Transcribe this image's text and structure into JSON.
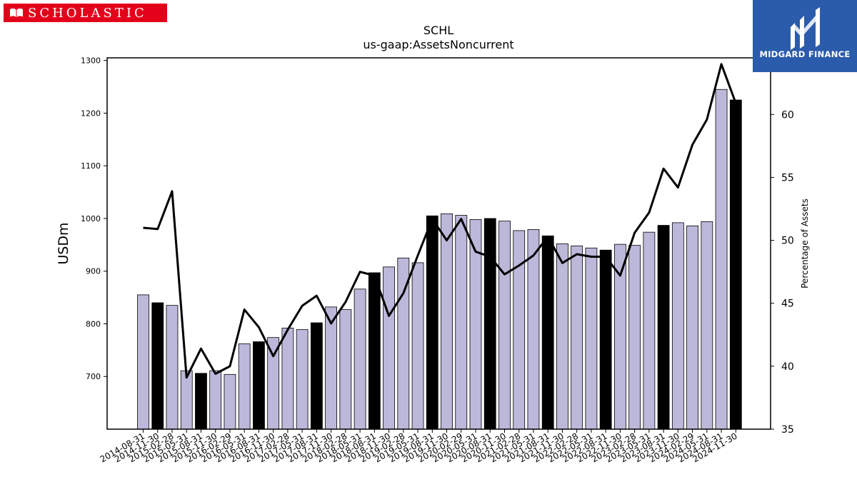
{
  "branding": {
    "left_logo_text": "SCHOLASTIC",
    "right_logo_text": "MIDGARD FINANCE",
    "left_logo_color": "#e3001b",
    "right_logo_color": "#2b5bab"
  },
  "chart_data": {
    "type": "bar",
    "title": "SCHL",
    "subtitle": "us-gaap:AssetsNoncurrent",
    "ylabel": "USDm",
    "y2label": "Percentage of Assets",
    "ylim": [
      600,
      1305
    ],
    "y2lim": [
      35,
      64.5
    ],
    "yticks": [
      700,
      800,
      900,
      1000,
      1100,
      1200,
      1300
    ],
    "y2ticks": [
      35,
      40,
      45,
      50,
      55,
      60
    ],
    "grid": false,
    "colors": {
      "bar_regular": "#bcb8da",
      "bar_fiscal_year_end": "#000000",
      "line": "#000000"
    },
    "categories": [
      "2014-08-31",
      "2014-11-30",
      "2015-02-28",
      "2015-05-31",
      "2015-08-31",
      "2015-11-30",
      "2016-02-29",
      "2016-05-31",
      "2016-08-31",
      "2016-11-30",
      "2017-02-28",
      "2017-05-31",
      "2017-08-31",
      "2017-11-30",
      "2018-02-28",
      "2018-05-31",
      "2018-08-31",
      "2018-11-30",
      "2019-02-28",
      "2019-05-31",
      "2019-08-31",
      "2019-11-30",
      "2020-02-29",
      "2020-05-31",
      "2020-08-31",
      "2020-11-30",
      "2021-02-28",
      "2021-05-31",
      "2021-08-31",
      "2021-11-30",
      "2022-02-28",
      "2022-05-31",
      "2022-08-31",
      "2022-11-30",
      "2023-02-28",
      "2023-05-31",
      "2023-08-31",
      "2023-11-30",
      "2024-02-29",
      "2024-05-31",
      "2024-08-31",
      "2024-11-30"
    ],
    "series": [
      {
        "type": "bar",
        "values": [
          855,
          840,
          835,
          711,
          706,
          711,
          704,
          762,
          766,
          774,
          792,
          789,
          802,
          832,
          827,
          866,
          897,
          908,
          925,
          916,
          1005,
          1009,
          1006,
          998,
          1000,
          995,
          977,
          979,
          967,
          952,
          948,
          944,
          940,
          951,
          949,
          974,
          987,
          992,
          986,
          994,
          1245,
          1225
        ],
        "highlighted": [
          false,
          true,
          false,
          false,
          true,
          false,
          false,
          false,
          true,
          false,
          false,
          false,
          true,
          false,
          false,
          false,
          true,
          false,
          false,
          false,
          true,
          false,
          false,
          false,
          true,
          false,
          false,
          false,
          true,
          false,
          false,
          false,
          true,
          false,
          false,
          false,
          true,
          false,
          false,
          false,
          false,
          true
        ]
      },
      {
        "type": "line",
        "axis": "right",
        "values": [
          51.0,
          50.9,
          53.9,
          39.1,
          41.4,
          39.4,
          40.0,
          44.5,
          43.1,
          40.8,
          42.9,
          44.8,
          45.6,
          43.4,
          45.1,
          47.5,
          47.2,
          44.0,
          45.8,
          48.8,
          51.7,
          50.0,
          51.7,
          49.1,
          48.7,
          47.3,
          48.0,
          48.8,
          50.3,
          48.2,
          48.9,
          48.7,
          48.7,
          47.2,
          50.6,
          52.2,
          55.7,
          54.2,
          57.6,
          59.6,
          64.0,
          60.9
        ]
      }
    ]
  }
}
